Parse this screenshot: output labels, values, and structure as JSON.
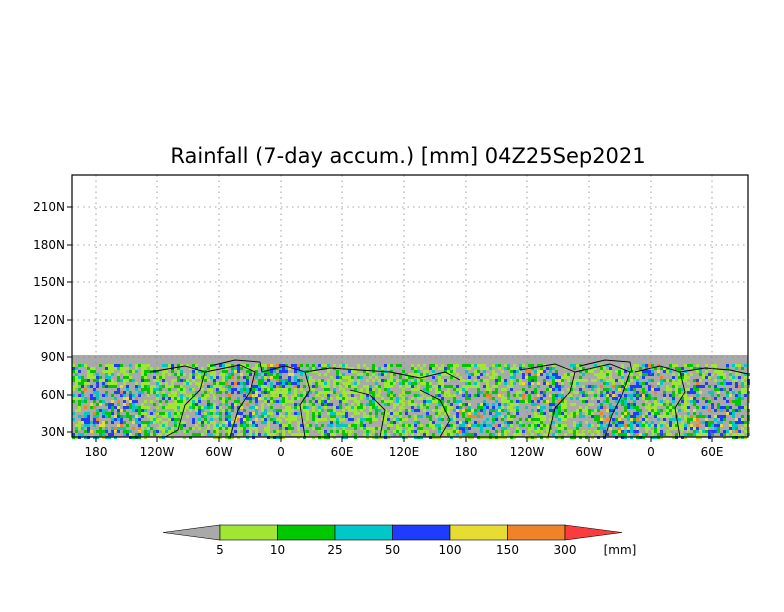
{
  "title": "Rainfall (7-day accum.) [mm] 04Z25Sep2021",
  "map": {
    "lat_labels": [
      "210N",
      "180N",
      "150N",
      "120N",
      "90N",
      "60N",
      "30N"
    ],
    "lon_labels": [
      "180",
      "120W",
      "60W",
      "0",
      "60E",
      "120E",
      "180",
      "120W",
      "60W",
      "0",
      "60E"
    ],
    "land_color": "#a9a9a9",
    "grid_style": "dotted"
  },
  "colorbar": {
    "labels": [
      "5",
      "10",
      "25",
      "50",
      "100",
      "150",
      "300"
    ],
    "unit": "[mm]",
    "colors": [
      "#a9a9a9",
      "#a0e632",
      "#00c800",
      "#00c8c8",
      "#1e3cff",
      "#e6dc32",
      "#f08228",
      "#fa3c3c"
    ]
  }
}
